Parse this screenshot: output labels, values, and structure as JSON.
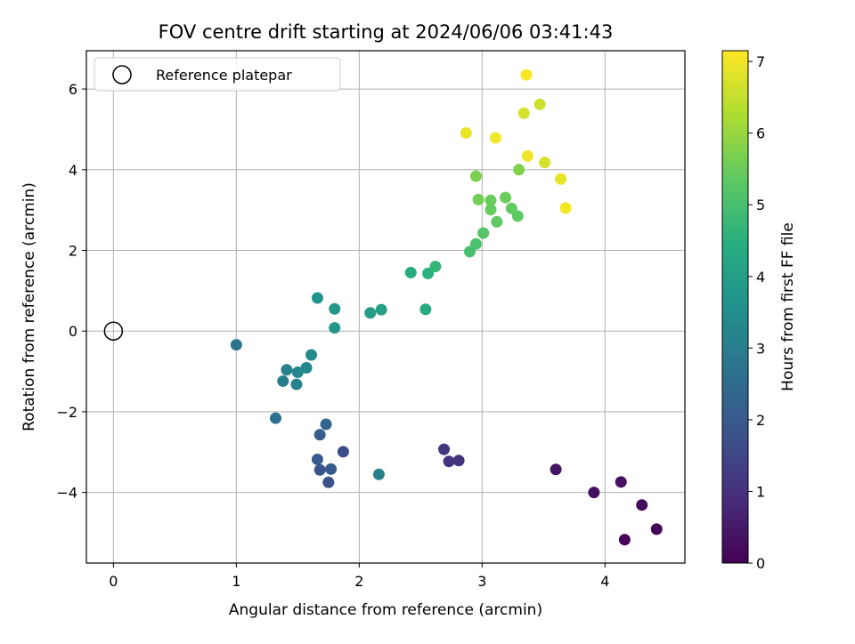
{
  "chart_data": {
    "type": "scatter",
    "title": "FOV centre drift starting at 2024/06/06 03:41:43",
    "xlabel": "Angular distance from reference (arcmin)",
    "ylabel": "Rotation from reference (arcmin)",
    "xlim": [
      -0.22,
      4.65
    ],
    "ylim": [
      -5.75,
      6.95
    ],
    "xticks": [
      0,
      1,
      2,
      3,
      4
    ],
    "xtick_labels": [
      "0",
      "1",
      "2",
      "3",
      "4"
    ],
    "yticks": [
      -4,
      -2,
      0,
      2,
      4,
      6
    ],
    "ytick_labels": [
      "−4",
      "−2",
      "0",
      "2",
      "4",
      "6"
    ],
    "grid": true,
    "legend": {
      "position": "top-left",
      "label": "Reference platepar"
    },
    "reference_point": {
      "x": 0,
      "y": 0
    },
    "colorbar": {
      "label": "Hours from first FF file",
      "colormap": "viridis",
      "range": [
        0,
        7.15
      ],
      "ticks": [
        0,
        1,
        2,
        3,
        4,
        5,
        6,
        7
      ],
      "tick_labels": [
        "0",
        "1",
        "2",
        "3",
        "4",
        "5",
        "6",
        "7"
      ]
    },
    "points": [
      {
        "x": 4.16,
        "y": -5.17,
        "t": 0.05
      },
      {
        "x": 4.42,
        "y": -4.91,
        "t": 0.1
      },
      {
        "x": 4.3,
        "y": -4.31,
        "t": 0.2
      },
      {
        "x": 3.91,
        "y": -4.0,
        "t": 0.3
      },
      {
        "x": 4.13,
        "y": -3.74,
        "t": 0.35
      },
      {
        "x": 3.6,
        "y": -3.43,
        "t": 0.4
      },
      {
        "x": 2.81,
        "y": -3.21,
        "t": 1.0
      },
      {
        "x": 2.73,
        "y": -3.23,
        "t": 1.05
      },
      {
        "x": 2.69,
        "y": -2.93,
        "t": 1.1
      },
      {
        "x": 1.87,
        "y": -2.99,
        "t": 1.7
      },
      {
        "x": 1.75,
        "y": -3.75,
        "t": 1.8
      },
      {
        "x": 1.68,
        "y": -3.44,
        "t": 1.9
      },
      {
        "x": 1.77,
        "y": -3.42,
        "t": 2.0
      },
      {
        "x": 1.66,
        "y": -3.18,
        "t": 2.05
      },
      {
        "x": 1.68,
        "y": -2.57,
        "t": 2.1
      },
      {
        "x": 1.73,
        "y": -2.31,
        "t": 2.3
      },
      {
        "x": 1.32,
        "y": -2.16,
        "t": 2.6
      },
      {
        "x": 2.16,
        "y": -3.55,
        "t": 3.1
      },
      {
        "x": 1.0,
        "y": -0.34,
        "t": 2.8
      },
      {
        "x": 1.38,
        "y": -1.24,
        "t": 3.0
      },
      {
        "x": 1.41,
        "y": -0.96,
        "t": 3.1
      },
      {
        "x": 1.49,
        "y": -1.32,
        "t": 3.15
      },
      {
        "x": 1.5,
        "y": -1.02,
        "t": 3.2
      },
      {
        "x": 1.57,
        "y": -0.91,
        "t": 3.3
      },
      {
        "x": 1.61,
        "y": -0.59,
        "t": 3.4
      },
      {
        "x": 1.66,
        "y": 0.82,
        "t": 3.6
      },
      {
        "x": 1.8,
        "y": 0.55,
        "t": 3.8
      },
      {
        "x": 1.8,
        "y": 0.08,
        "t": 3.7
      },
      {
        "x": 2.09,
        "y": 0.45,
        "t": 3.9
      },
      {
        "x": 2.18,
        "y": 0.53,
        "t": 4.0
      },
      {
        "x": 2.42,
        "y": 1.45,
        "t": 4.4
      },
      {
        "x": 2.54,
        "y": 0.54,
        "t": 4.3
      },
      {
        "x": 2.56,
        "y": 1.43,
        "t": 4.5
      },
      {
        "x": 2.62,
        "y": 1.6,
        "t": 4.7
      },
      {
        "x": 2.9,
        "y": 1.97,
        "t": 5.0
      },
      {
        "x": 2.95,
        "y": 2.16,
        "t": 5.1
      },
      {
        "x": 3.01,
        "y": 2.43,
        "t": 5.2
      },
      {
        "x": 3.12,
        "y": 2.71,
        "t": 5.35
      },
      {
        "x": 3.07,
        "y": 3.01,
        "t": 5.45
      },
      {
        "x": 3.07,
        "y": 3.24,
        "t": 5.5
      },
      {
        "x": 2.97,
        "y": 3.26,
        "t": 5.6
      },
      {
        "x": 3.19,
        "y": 3.31,
        "t": 5.5
      },
      {
        "x": 3.24,
        "y": 3.04,
        "t": 5.4
      },
      {
        "x": 3.29,
        "y": 2.85,
        "t": 5.35
      },
      {
        "x": 2.95,
        "y": 3.84,
        "t": 5.7
      },
      {
        "x": 3.3,
        "y": 4.0,
        "t": 5.75
      },
      {
        "x": 3.51,
        "y": 4.18,
        "t": 6.7
      },
      {
        "x": 3.37,
        "y": 4.34,
        "t": 7.0
      },
      {
        "x": 3.64,
        "y": 3.77,
        "t": 6.9
      },
      {
        "x": 3.68,
        "y": 3.05,
        "t": 7.05
      },
      {
        "x": 3.11,
        "y": 4.79,
        "t": 7.0
      },
      {
        "x": 2.87,
        "y": 4.91,
        "t": 6.95
      },
      {
        "x": 3.34,
        "y": 5.4,
        "t": 6.7
      },
      {
        "x": 3.47,
        "y": 5.62,
        "t": 6.6
      },
      {
        "x": 3.36,
        "y": 6.35,
        "t": 7.1
      }
    ]
  }
}
